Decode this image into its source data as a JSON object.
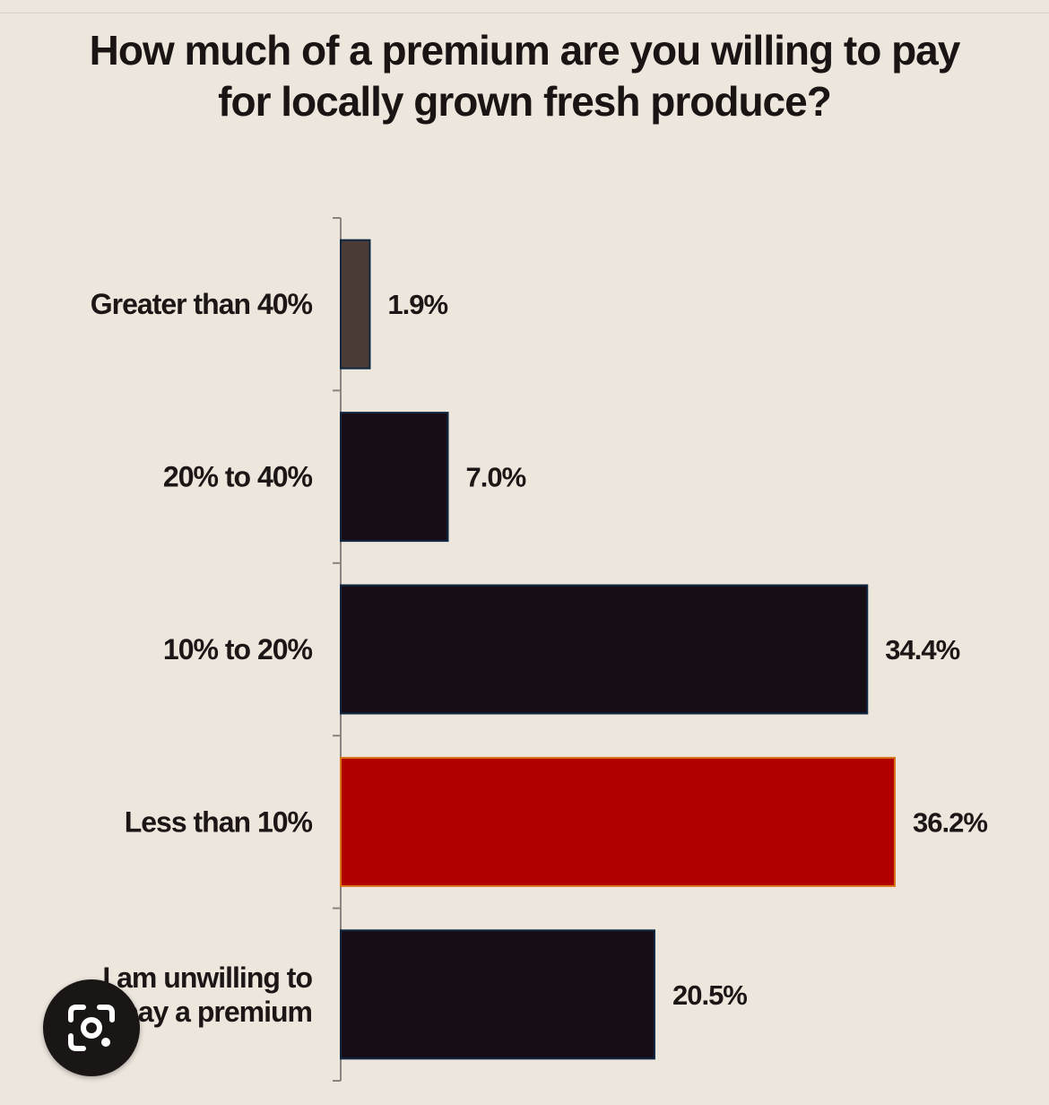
{
  "chart_data": {
    "type": "bar",
    "orientation": "horizontal",
    "title": "How much of a premium are you willing to pay for locally grown fresh produce?",
    "categories": [
      "Greater than 40%",
      "20% to 40%",
      "10% to 20%",
      "Less than 10%",
      "I am unwilling to pay a premium"
    ],
    "category_lines": [
      [
        "Greater than 40%"
      ],
      [
        "20% to 40%"
      ],
      [
        "10% to 20%"
      ],
      [
        "Less than 10%"
      ],
      [
        "I am unwilling to",
        "pay a premium"
      ]
    ],
    "values": [
      1.9,
      7.0,
      34.4,
      36.2,
      20.5
    ],
    "value_labels": [
      "1.9%",
      "7.0%",
      "34.4%",
      "36.2%",
      "20.5%"
    ],
    "bar_colors": [
      "#4a3b36",
      "#170d16",
      "#170d16",
      "#b10000",
      "#170d16"
    ],
    "highlight_color": "#b10000",
    "xlim": [
      0,
      36.2
    ],
    "grid": false,
    "legend": "none"
  },
  "overlay": {
    "icon": "lens-camera-icon"
  }
}
